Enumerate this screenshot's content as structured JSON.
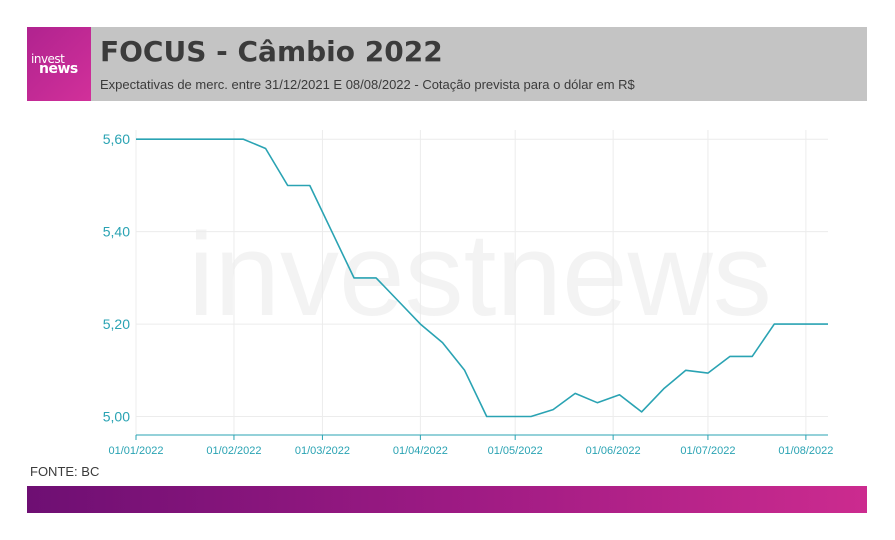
{
  "header": {
    "logo_line1": "invest",
    "logo_line2": "news",
    "title": "FOCUS - Câmbio 2022",
    "subtitle": "Expectativas de merc. entre 31/12/2021 E 08/08/2022 - Cotação prevista para o dólar em R$"
  },
  "watermark": "investnews",
  "source": "FONTE: BC",
  "colors": {
    "line": "#2aa3b3",
    "header_bg": "#c4c4c4",
    "logo_bg": "#c0288f",
    "footer_start": "#6e0f73",
    "footer_end": "#cc2b8f",
    "tick_text": "#2aa3b3"
  },
  "chart_data": {
    "type": "line",
    "title": "",
    "xlabel": "",
    "ylabel": "",
    "ylim": [
      4.96,
      5.62
    ],
    "xlim": [
      "2022-01-01",
      "2022-08-08"
    ],
    "yticks": [
      5.0,
      5.2,
      5.4,
      5.6
    ],
    "ytick_labels": [
      "5,00",
      "5,20",
      "5,40",
      "5,60"
    ],
    "xtick_dates": [
      "2022-01-01",
      "2022-02-01",
      "2022-03-01",
      "2022-04-01",
      "2022-05-01",
      "2022-06-01",
      "2022-07-01",
      "2022-08-01"
    ],
    "xtick_labels": [
      "01/01/2022",
      "01/02/2022",
      "01/03/2022",
      "01/04/2022",
      "01/05/2022",
      "01/06/2022",
      "01/07/2022",
      "01/08/2022"
    ],
    "grid": true,
    "series": [
      {
        "x": [
          "2022-01-01",
          "2022-02-04",
          "2022-02-11",
          "2022-02-18",
          "2022-02-25",
          "2022-03-04",
          "2022-03-11",
          "2022-03-18",
          "2022-03-25",
          "2022-04-01",
          "2022-04-08",
          "2022-04-15",
          "2022-04-22",
          "2022-04-29",
          "2022-05-06",
          "2022-05-13",
          "2022-05-20",
          "2022-05-27",
          "2022-06-03",
          "2022-06-10",
          "2022-06-17",
          "2022-06-24",
          "2022-07-01",
          "2022-07-08",
          "2022-07-15",
          "2022-07-22",
          "2022-07-29",
          "2022-08-08"
        ],
        "values": [
          5.6,
          5.6,
          5.58,
          5.5,
          5.5,
          5.4,
          5.3,
          5.3,
          5.25,
          5.2,
          5.16,
          5.1,
          5.0,
          5.0,
          5.0,
          5.015,
          5.05,
          5.03,
          5.047,
          5.01,
          5.06,
          5.1,
          5.094,
          5.13,
          5.13,
          5.2,
          5.2,
          5.2
        ]
      }
    ]
  }
}
